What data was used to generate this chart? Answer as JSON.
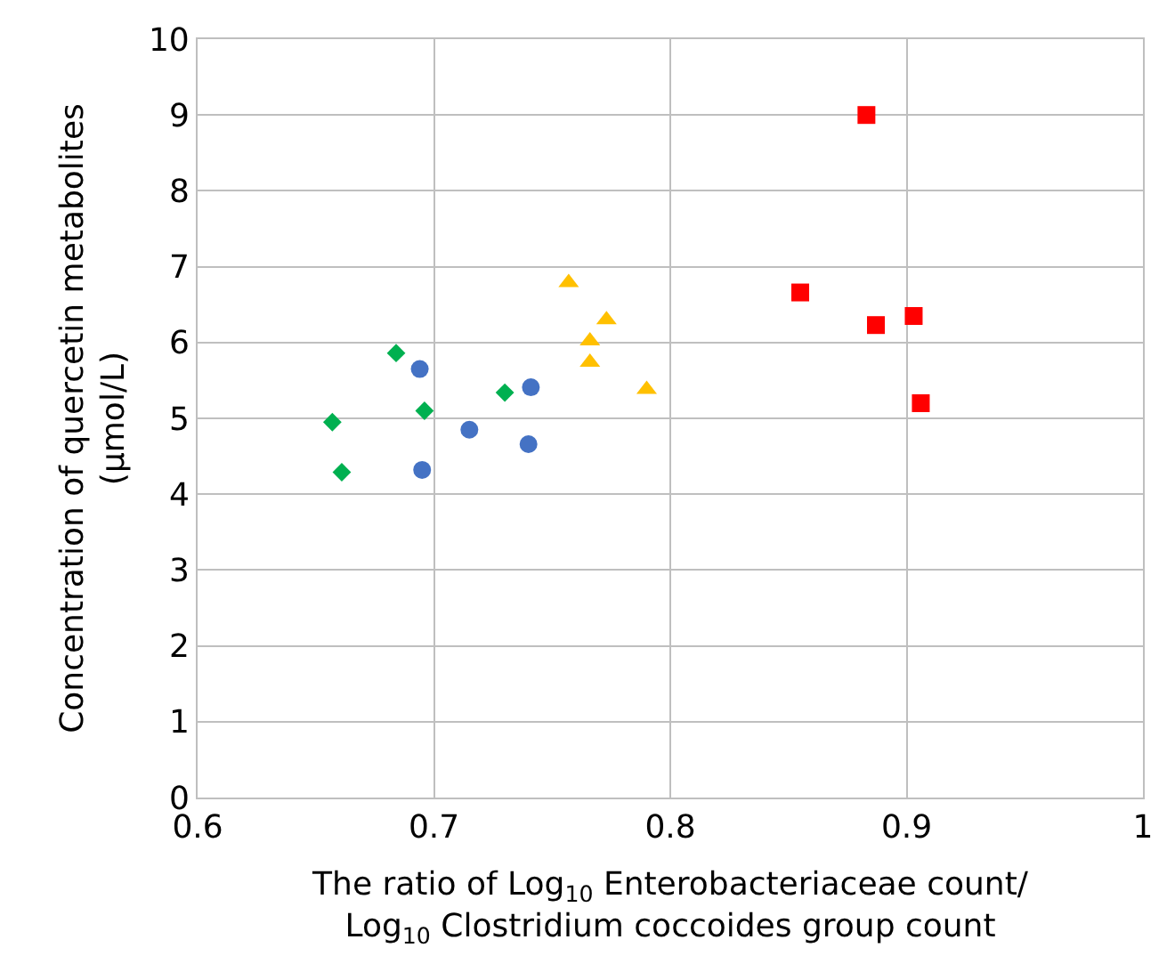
{
  "chart_data": {
    "type": "scatter",
    "xlabel": "The ratio of Log$_{10}$ Enterobacteriaceae count/\nLog$_{10}$ Clostridium coccoides group count",
    "ylabel": "Concentration of quercetin metabolites\n(μmol/L)",
    "xlim": [
      0.6,
      1
    ],
    "xticks": [
      0.6,
      0.7,
      0.8,
      0.9,
      1
    ],
    "ylim": [
      0,
      10
    ],
    "yticks": [
      0,
      1,
      2,
      3,
      4,
      5,
      6,
      7,
      8,
      9,
      10
    ],
    "grid": true,
    "series": [
      {
        "color": "#00b050",
        "marker": "diamond",
        "x": [
          0.657,
          0.661,
          0.684,
          0.696,
          0.73
        ],
        "values": [
          4.95,
          4.29,
          5.86,
          5.1,
          5.34
        ]
      },
      {
        "color": "#4472c4",
        "marker": "circle",
        "x": [
          0.694,
          0.695,
          0.715,
          0.74,
          0.741
        ],
        "values": [
          5.65,
          4.32,
          4.85,
          4.66,
          5.41
        ]
      },
      {
        "color": "#ffc000",
        "marker": "triangle",
        "x": [
          0.757,
          0.773,
          0.766,
          0.766,
          0.79
        ],
        "values": [
          6.79,
          6.3,
          6.02,
          5.74,
          5.38
        ]
      },
      {
        "color": "#ff0000",
        "marker": "square",
        "x": [
          0.883,
          0.855,
          0.887,
          0.903,
          0.906
        ],
        "values": [
          9.0,
          6.66,
          6.23,
          6.35,
          5.2
        ]
      }
    ]
  }
}
